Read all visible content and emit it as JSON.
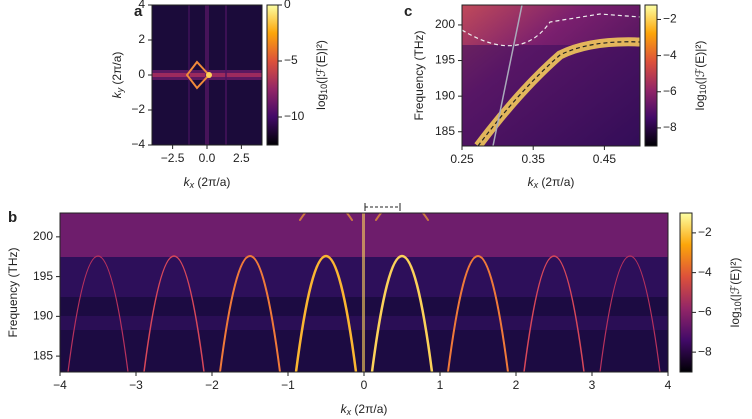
{
  "chart_data": [
    {
      "type": "heatmap",
      "panel": "a",
      "colormap": "inferno",
      "xlabel": {
        "base": "k",
        "sub": "x",
        "unit": " (2π/a)"
      },
      "ylabel": {
        "base": "k",
        "sub": "y",
        "unit": " (2π/a)"
      },
      "xlim": [
        -4,
        4
      ],
      "xticks": [
        {
          "value": -2.5,
          "label": "−2.5"
        },
        {
          "value": 0,
          "label": "0.0"
        },
        {
          "value": 2.5,
          "label": "2.5"
        }
      ],
      "ylim": [
        -4,
        4
      ],
      "yticks": [
        {
          "value": -4,
          "label": "−4"
        },
        {
          "value": -2,
          "label": "−2"
        },
        0,
        2,
        4
      ],
      "colorbar_label": {
        "pre": "log",
        "sub": "10",
        "post": "(|ℱ(E)|²)"
      },
      "clim": [
        -12.5,
        0
      ],
      "cticks": [
        0,
        {
          "value": -5,
          "label": "−5"
        },
        {
          "value": -10,
          "label": "−10"
        }
      ]
    },
    {
      "type": "heatmap",
      "panel": "b",
      "colormap": "inferno",
      "xlabel": {
        "base": "k",
        "sub": "x",
        "unit": " (2π/a)"
      },
      "ylabel": {
        "base": "",
        "sub": "",
        "unit": "Frequency (THz)"
      },
      "xlim": [
        -4,
        4
      ],
      "xticks": [
        {
          "value": -4,
          "label": "−4"
        },
        {
          "value": -3,
          "label": "−3"
        },
        {
          "value": -2,
          "label": "−2"
        },
        {
          "value": -1,
          "label": "−1"
        },
        0,
        1,
        2,
        3,
        4
      ],
      "ylim": [
        183,
        203
      ],
      "yticks": [
        185,
        190,
        195,
        200
      ],
      "colorbar_label": {
        "pre": "log",
        "sub": "10",
        "post": "(|ℱ(E)|²)"
      },
      "clim": [
        -9,
        -1
      ],
      "cticks": [
        {
          "value": -2,
          "label": "−2"
        },
        {
          "value": -4,
          "label": "−4"
        },
        {
          "value": -6,
          "label": "−6"
        },
        {
          "value": -8,
          "label": "−8"
        }
      ]
    },
    {
      "type": "heatmap",
      "panel": "c",
      "colormap": "inferno",
      "xlabel": {
        "base": "k",
        "sub": "x",
        "unit": " (2π/a)"
      },
      "ylabel": {
        "base": "",
        "sub": "",
        "unit": "Frequency (THz)"
      },
      "xlim": [
        0.25,
        0.5
      ],
      "xticks": [
        0.25,
        0.35,
        0.45
      ],
      "ylim": [
        183,
        202.8
      ],
      "yticks": [
        185,
        190,
        195,
        200
      ],
      "colorbar_label": {
        "pre": "log",
        "sub": "10",
        "post": "(|ℱ(E)|²)"
      },
      "clim": [
        -9,
        -1.2
      ],
      "cticks": [
        {
          "value": -2,
          "label": "−2"
        },
        {
          "value": -4,
          "label": "−4"
        },
        {
          "value": -6,
          "label": "−6"
        },
        {
          "value": -8,
          "label": "−8"
        }
      ]
    }
  ]
}
